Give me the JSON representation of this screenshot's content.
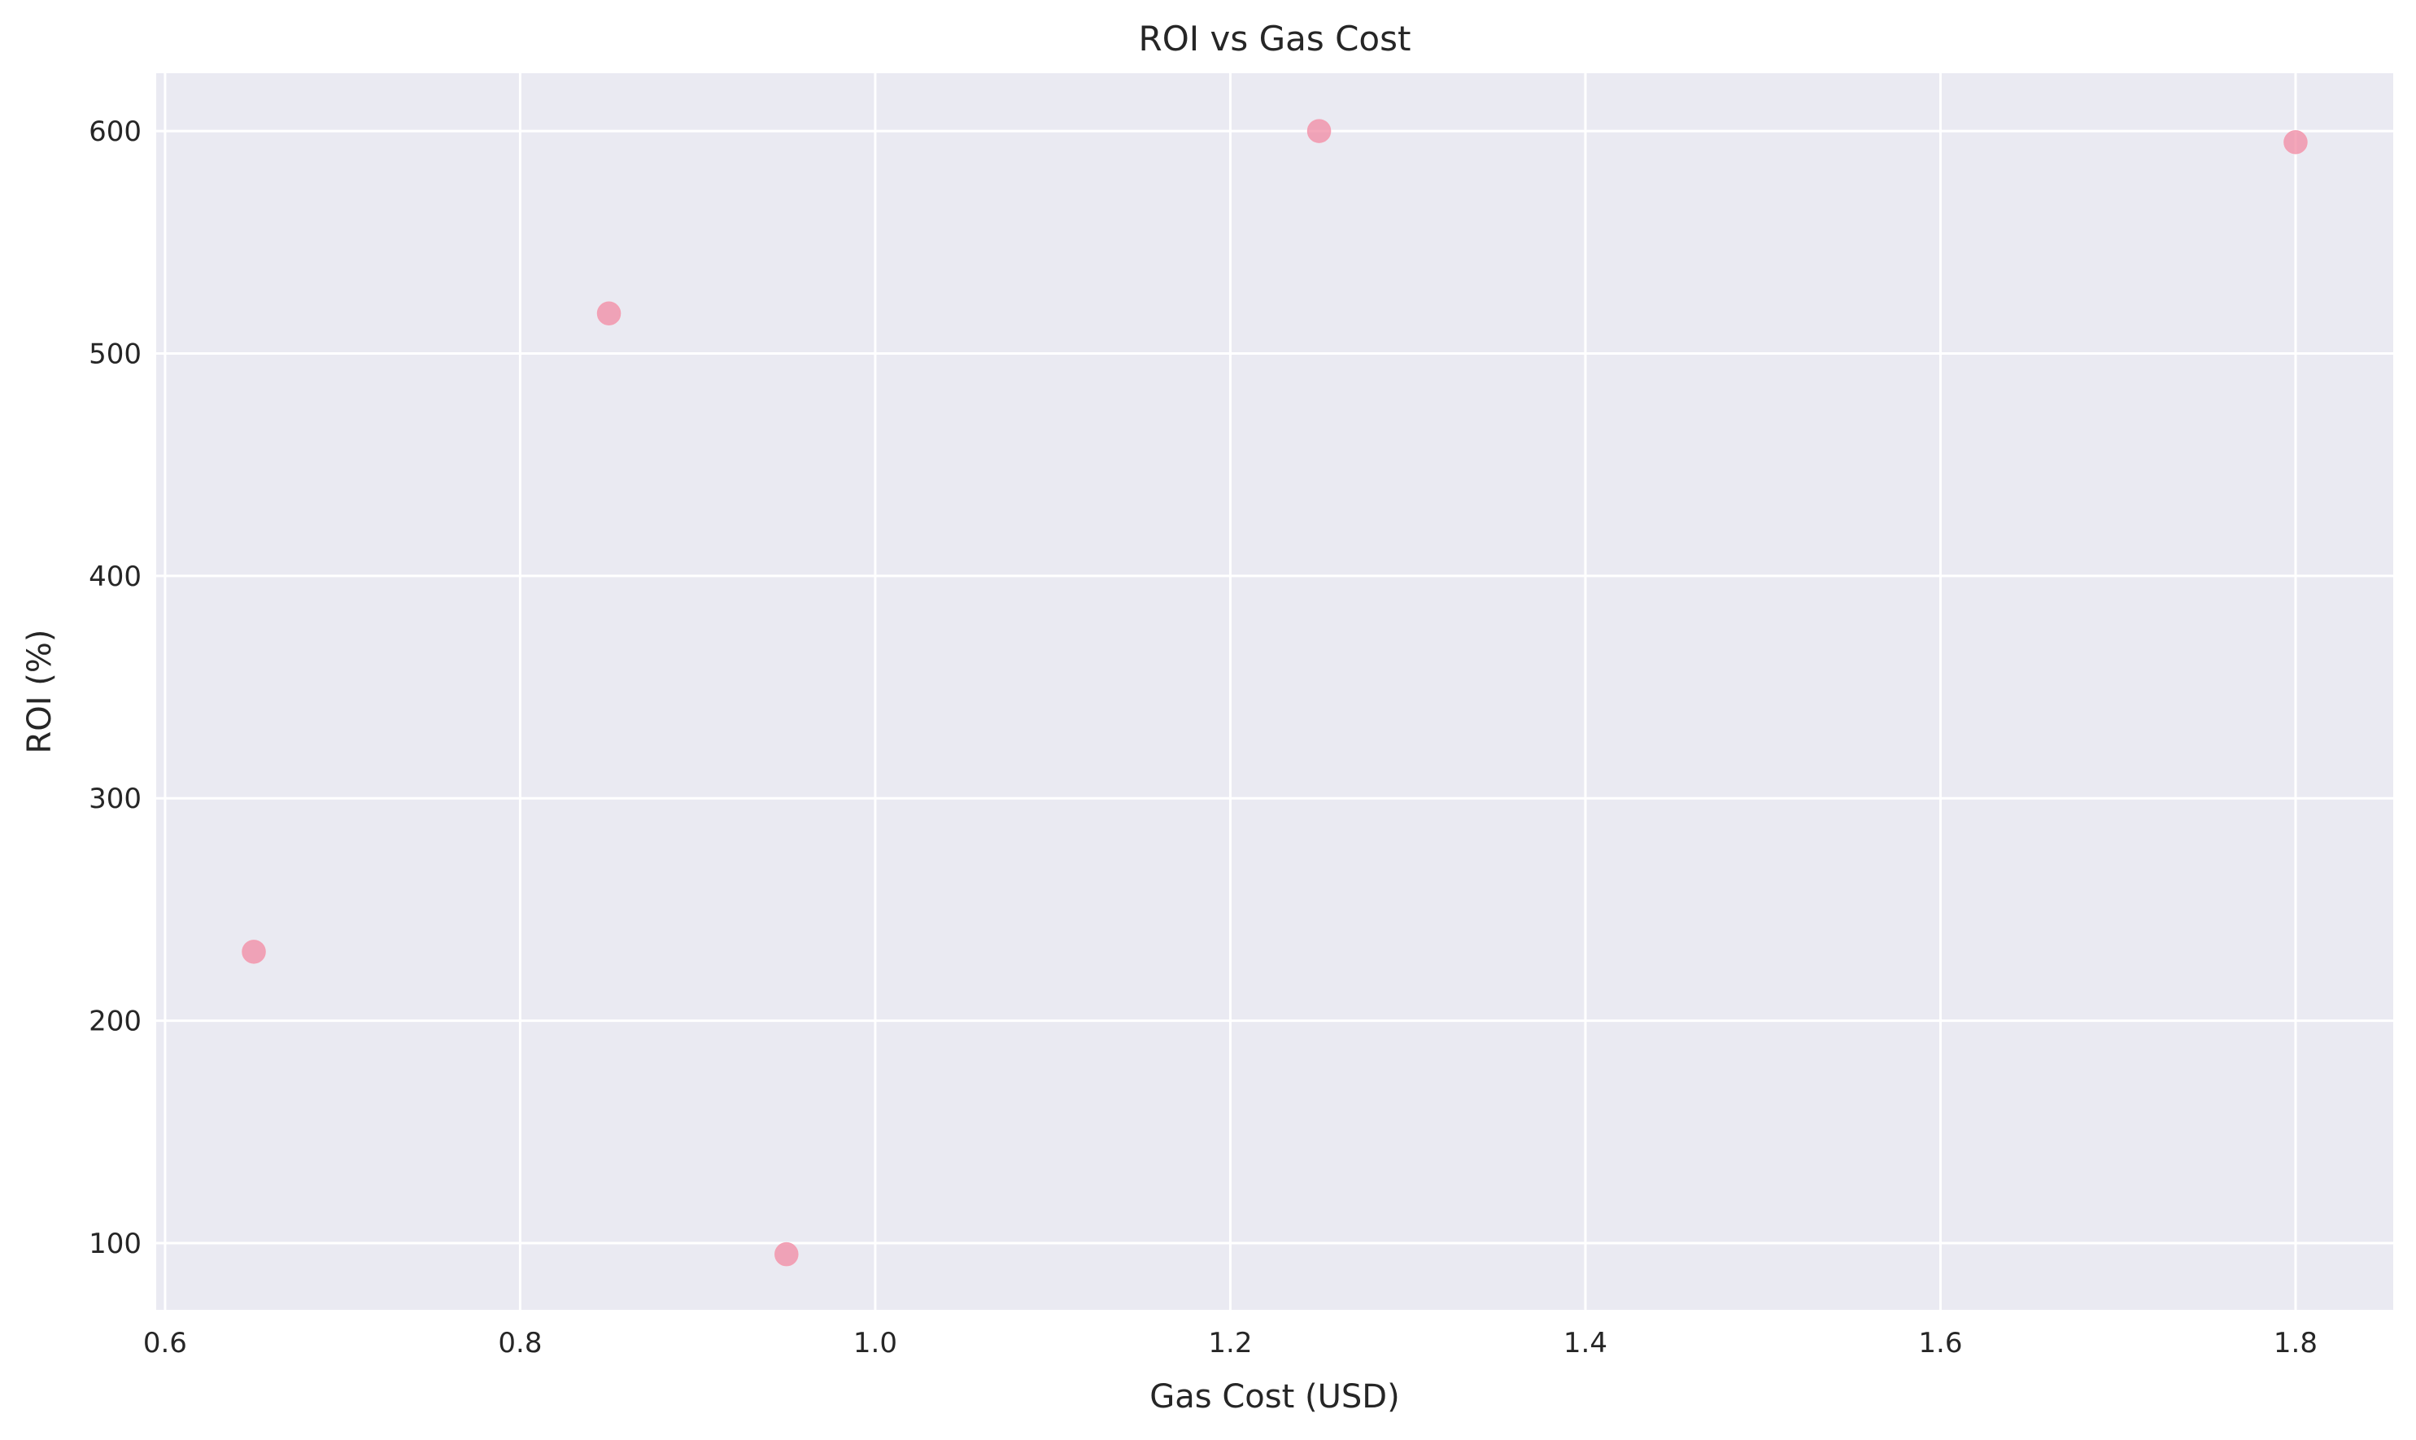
{
  "chart_data": {
    "type": "scatter",
    "title": "ROI vs Gas Cost",
    "xlabel": "Gas Cost (USD)",
    "ylabel": "ROI (%)",
    "x": [
      0.65,
      0.85,
      0.95,
      1.25,
      1.8
    ],
    "y": [
      231,
      518,
      95,
      600,
      595
    ],
    "xlim": [
      0.595,
      1.855
    ],
    "ylim": [
      70,
      626
    ],
    "xticks": [
      0.6,
      0.8,
      1.0,
      1.2,
      1.4,
      1.6,
      1.8
    ],
    "xtick_labels": [
      "0.6",
      "0.8",
      "1.0",
      "1.2",
      "1.4",
      "1.6",
      "1.8"
    ],
    "yticks": [
      100,
      200,
      300,
      400,
      500,
      600
    ],
    "ytick_labels": [
      "100",
      "200",
      "300",
      "400",
      "500",
      "600"
    ],
    "grid": true,
    "colors": {
      "background": "#eaeaf2",
      "grid": "#ffffff",
      "point": "#f08aa3"
    }
  }
}
